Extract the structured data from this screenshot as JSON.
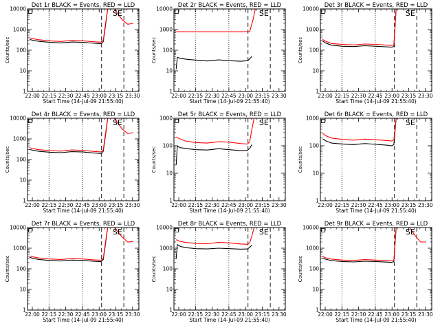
{
  "figure": {
    "rows": 3,
    "cols": 3
  },
  "chart_data": [
    {
      "type": "line",
      "title": "Det 1r BLACK = Events, RED = LLD",
      "xlabel": "Start Time (14-Jul-09 21:55:40)",
      "ylabel": "Counts/sec",
      "x_ticks": [
        "22:00",
        "22:15",
        "22:30",
        "22:45",
        "23:00",
        "23:15",
        "23:30"
      ],
      "y_ticks": [
        "1",
        "10",
        "100",
        "1000",
        "10000"
      ],
      "y_scale": "log",
      "ylim": [
        1,
        10000
      ],
      "xlim_minutes_after_start": [
        0,
        100
      ],
      "series": [
        {
          "name": "Events",
          "color": "#000000",
          "x": [
            2,
            5,
            10,
            20,
            30,
            40,
            50,
            60,
            66,
            68,
            70,
            72
          ],
          "y": [
            330,
            300,
            270,
            240,
            225,
            250,
            240,
            215,
            205,
            260,
            1500,
            10000
          ]
        },
        {
          "name": "LLD",
          "color": "#ff0000",
          "x": [
            2,
            5,
            10,
            20,
            30,
            40,
            50,
            60,
            66,
            68,
            70,
            72,
            78,
            85,
            90,
            95
          ],
          "y": [
            400,
            360,
            320,
            280,
            265,
            300,
            285,
            255,
            245,
            300,
            1800,
            10000,
            10000,
            3000,
            1800,
            2000
          ]
        }
      ],
      "vlines_dotted_min": [
        19.3,
        49.3
      ],
      "vlines_dashed_min": [
        66.5,
        86.5
      ],
      "annotations": [
        {
          "text": "SE",
          "x_min": 76.5
        }
      ]
    },
    {
      "type": "line",
      "title": "Det 2r BLACK = Events, RED = LLD",
      "xlabel": "Start Time (14-Jul-09 21:55:40)",
      "ylabel": "Counts/sec",
      "x_ticks": [
        "22:00",
        "22:15",
        "22:30",
        "22:45",
        "23:00",
        "23:15",
        "23:30"
      ],
      "y_ticks": [
        "1",
        "10",
        "100",
        "1000",
        "10000"
      ],
      "y_scale": "log",
      "ylim": [
        1,
        10000
      ],
      "xlim_minutes_after_start": [
        0,
        100
      ],
      "series": [
        {
          "name": "Events",
          "color": "#000000",
          "x": [
            2,
            3,
            6,
            12,
            20,
            30,
            40,
            50,
            60,
            66,
            68,
            70
          ],
          "y": [
            12,
            45,
            40,
            36,
            33,
            30,
            34,
            31,
            29,
            31,
            38,
            50
          ]
        },
        {
          "name": "LLD",
          "color": "#ff0000",
          "x": [
            2,
            20,
            40,
            60,
            68,
            71,
            73,
            75,
            77,
            80,
            83,
            86,
            89,
            92,
            95
          ],
          "y": [
            780,
            780,
            780,
            780,
            800,
            3000,
            10000,
            10000,
            10000,
            10000,
            10000,
            10000,
            10000,
            10000,
            10000
          ]
        }
      ],
      "vlines_dotted_min": [
        19.3,
        49.3
      ],
      "vlines_dashed_min": [
        66.5,
        86.5
      ],
      "annotations": [
        {
          "text": "SE",
          "x_min": 76.5
        }
      ]
    },
    {
      "type": "line",
      "title": "Det 3r BLACK = Events, RED = LLD",
      "xlabel": "Start Time (14-Jul-09 21:55:40)",
      "ylabel": "Counts/sec",
      "x_ticks": [
        "22:00",
        "22:15",
        "22:30",
        "22:45",
        "23:00",
        "23:15",
        "23:30"
      ],
      "y_ticks": [
        "1",
        "10",
        "100",
        "1000",
        "10000"
      ],
      "y_scale": "log",
      "ylim": [
        1,
        10000
      ],
      "xlim_minutes_after_start": [
        0,
        100
      ],
      "series": [
        {
          "name": "Events",
          "color": "#000000",
          "x": [
            2,
            5,
            10,
            20,
            30,
            40,
            50,
            60,
            64,
            66,
            68
          ],
          "y": [
            280,
            220,
            175,
            155,
            150,
            165,
            155,
            145,
            140,
            150,
            10000
          ]
        },
        {
          "name": "LLD",
          "color": "#ff0000",
          "x": [
            2,
            5,
            10,
            20,
            30,
            40,
            50,
            60,
            64,
            66,
            68
          ],
          "y": [
            330,
            270,
            210,
            190,
            180,
            200,
            190,
            175,
            170,
            180,
            10000
          ]
        }
      ],
      "vlines_dotted_min": [
        19.3,
        49.3
      ],
      "vlines_dashed_min": [
        66.5,
        86.5
      ],
      "annotations": [
        {
          "text": "SE",
          "x_min": 76.5
        }
      ]
    },
    {
      "type": "line",
      "title": "Det 4r BLACK = Events, RED = LLD",
      "xlabel": "Start Time (14-Jul-09 21:55:40)",
      "ylabel": "Counts/sec",
      "x_ticks": [
        "22:00",
        "22:15",
        "22:30",
        "22:45",
        "23:00",
        "23:15",
        "23:30"
      ],
      "y_ticks": [
        "1",
        "10",
        "100",
        "1000",
        "10000"
      ],
      "y_scale": "log",
      "ylim": [
        1,
        10000
      ],
      "xlim_minutes_after_start": [
        0,
        100
      ],
      "series": [
        {
          "name": "Events",
          "color": "#000000",
          "x": [
            2,
            5,
            10,
            20,
            30,
            40,
            50,
            60,
            66,
            68,
            70,
            72
          ],
          "y": [
            310,
            280,
            250,
            225,
            215,
            240,
            230,
            205,
            195,
            250,
            1400,
            10000
          ]
        },
        {
          "name": "LLD",
          "color": "#ff0000",
          "x": [
            2,
            5,
            10,
            20,
            30,
            40,
            50,
            60,
            66,
            68,
            70,
            72,
            78,
            85,
            90,
            95
          ],
          "y": [
            380,
            340,
            300,
            270,
            255,
            290,
            275,
            245,
            235,
            290,
            1700,
            10000,
            10000,
            3000,
            1800,
            2000
          ]
        }
      ],
      "vlines_dotted_min": [
        19.3,
        49.3
      ],
      "vlines_dashed_min": [
        66.5,
        86.5
      ],
      "annotations": [
        {
          "text": "SE",
          "x_min": 76.5
        }
      ]
    },
    {
      "type": "line",
      "title": "Det 5r BLACK = Events, RED = LLD",
      "xlabel": "Start Time (14-Jul-09 21:55:40)",
      "ylabel": "Counts/sec",
      "x_ticks": [
        "22:00",
        "22:15",
        "22:30",
        "22:45",
        "23:00",
        "23:15",
        "23:30"
      ],
      "y_ticks": [
        "1",
        "10",
        "100",
        "1000"
      ],
      "y_scale": "log",
      "ylim": [
        1,
        1000
      ],
      "xlim_minutes_after_start": [
        0,
        100
      ],
      "series": [
        {
          "name": "Events",
          "color": "#000000",
          "x": [
            2,
            3,
            6,
            12,
            20,
            30,
            40,
            50,
            60,
            66,
            68,
            70
          ],
          "y": [
            20,
            95,
            85,
            78,
            72,
            70,
            78,
            72,
            66,
            68,
            80,
            110
          ]
        },
        {
          "name": "LLD",
          "color": "#ff0000",
          "x": [
            2,
            5,
            10,
            20,
            30,
            40,
            50,
            60,
            66,
            68,
            70,
            72,
            80,
            90,
            95
          ],
          "y": [
            210,
            180,
            150,
            130,
            125,
            140,
            135,
            120,
            115,
            140,
            400,
            1000,
            1000,
            1000,
            1000
          ]
        }
      ],
      "vlines_dotted_min": [
        19.3,
        49.3
      ],
      "vlines_dashed_min": [
        66.5,
        86.5
      ],
      "annotations": [
        {
          "text": "SE",
          "x_min": 76.5
        }
      ]
    },
    {
      "type": "line",
      "title": "Det 6r BLACK = Events, RED = LLD",
      "xlabel": "Start Time (14-Jul-09 21:55:40)",
      "ylabel": "Counts/sec",
      "x_ticks": [
        "22:00",
        "22:15",
        "22:30",
        "22:45",
        "23:00",
        "23:15",
        "23:30"
      ],
      "y_ticks": [
        "1",
        "10",
        "100",
        "1000"
      ],
      "y_scale": "log",
      "ylim": [
        1,
        1000
      ],
      "xlim_minutes_after_start": [
        0,
        100
      ],
      "series": [
        {
          "name": "Events",
          "color": "#000000",
          "x": [
            2,
            5,
            10,
            20,
            30,
            40,
            50,
            60,
            64,
            66,
            68
          ],
          "y": [
            180,
            150,
            125,
            115,
            110,
            120,
            112,
            105,
            100,
            110,
            1000
          ]
        },
        {
          "name": "LLD",
          "color": "#ff0000",
          "x": [
            2,
            5,
            10,
            20,
            30,
            40,
            50,
            60,
            64,
            66,
            68
          ],
          "y": [
            280,
            230,
            190,
            170,
            160,
            175,
            165,
            155,
            150,
            165,
            1000
          ]
        }
      ],
      "vlines_dotted_min": [
        19.3,
        49.3
      ],
      "vlines_dashed_min": [
        66.5,
        86.5
      ],
      "annotations": [
        {
          "text": "SE",
          "x_min": 76.5
        }
      ]
    },
    {
      "type": "line",
      "title": "Det 7r BLACK = Events, RED = LLD",
      "xlabel": "Start Time (14-Jul-09 21:55:40)",
      "ylabel": "Counts/sec",
      "x_ticks": [
        "22:00",
        "22:15",
        "22:30",
        "22:45",
        "23:00",
        "23:15",
        "23:30"
      ],
      "y_ticks": [
        "1",
        "10",
        "100",
        "1000",
        "10000"
      ],
      "y_scale": "log",
      "ylim": [
        1,
        10000
      ],
      "xlim_minutes_after_start": [
        0,
        100
      ],
      "series": [
        {
          "name": "Events",
          "color": "#000000",
          "x": [
            2,
            5,
            10,
            20,
            30,
            40,
            50,
            60,
            66,
            68,
            70,
            72
          ],
          "y": [
            360,
            320,
            285,
            255,
            240,
            265,
            255,
            230,
            220,
            280,
            1600,
            10000
          ]
        },
        {
          "name": "LLD",
          "color": "#ff0000",
          "x": [
            2,
            5,
            10,
            20,
            30,
            40,
            50,
            60,
            66,
            68,
            70,
            72,
            78,
            85,
            90,
            95
          ],
          "y": [
            420,
            380,
            335,
            300,
            285,
            315,
            300,
            270,
            260,
            320,
            1900,
            10000,
            10000,
            3500,
            2000,
            2100
          ]
        }
      ],
      "vlines_dotted_min": [
        19.3,
        49.3
      ],
      "vlines_dashed_min": [
        66.5,
        86.5
      ],
      "annotations": [
        {
          "text": "SE",
          "x_min": 76.5
        }
      ]
    },
    {
      "type": "line",
      "title": "Det 8r BLACK = Events, RED = LLD",
      "xlabel": "Start Time (14-Jul-09 21:55:40)",
      "ylabel": "Counts/sec",
      "x_ticks": [
        "22:00",
        "22:15",
        "22:30",
        "22:45",
        "23:00",
        "23:15",
        "23:30"
      ],
      "y_ticks": [
        "1",
        "10",
        "100",
        "1000",
        "10000"
      ],
      "y_scale": "log",
      "ylim": [
        1,
        10000
      ],
      "xlim_minutes_after_start": [
        0,
        100
      ],
      "series": [
        {
          "name": "Events",
          "color": "#000000",
          "x": [
            2,
            3,
            6,
            12,
            20,
            30,
            40,
            50,
            60,
            66,
            68,
            70
          ],
          "y": [
            300,
            1500,
            1200,
            1050,
            950,
            920,
            1000,
            950,
            900,
            920,
            1100,
            1400
          ]
        },
        {
          "name": "LLD",
          "color": "#ff0000",
          "x": [
            2,
            5,
            10,
            20,
            30,
            40,
            50,
            60,
            66,
            68,
            70,
            72,
            80,
            90,
            95
          ],
          "y": [
            2600,
            2200,
            1900,
            1700,
            1650,
            1900,
            1800,
            1600,
            1550,
            1800,
            4000,
            10000,
            10000,
            10000,
            10000
          ]
        }
      ],
      "vlines_dotted_min": [
        19.3,
        49.3
      ],
      "vlines_dashed_min": [
        66.5,
        86.5
      ],
      "annotations": [
        {
          "text": "SE",
          "x_min": 76.5
        }
      ]
    },
    {
      "type": "line",
      "title": "Det 9r BLACK = Events, RED = LLD",
      "xlabel": "Start Time (14-Jul-09 21:55:40)",
      "ylabel": "Counts/sec",
      "x_ticks": [
        "22:00",
        "22:15",
        "22:30",
        "22:45",
        "23:00",
        "23:15",
        "23:30"
      ],
      "y_ticks": [
        "1",
        "10",
        "100",
        "1000",
        "10000"
      ],
      "y_scale": "log",
      "ylim": [
        1,
        10000
      ],
      "xlim_minutes_after_start": [
        0,
        100
      ],
      "series": [
        {
          "name": "Events",
          "color": "#000000",
          "x": [
            2,
            5,
            10,
            20,
            30,
            40,
            50,
            60,
            64,
            66,
            68
          ],
          "y": [
            340,
            290,
            250,
            225,
            215,
            235,
            225,
            210,
            205,
            220,
            10000
          ]
        },
        {
          "name": "LLD",
          "color": "#ff0000",
          "x": [
            2,
            5,
            10,
            20,
            30,
            40,
            50,
            60,
            64,
            66,
            68,
            80,
            86,
            90,
            95
          ],
          "y": [
            400,
            340,
            295,
            265,
            255,
            280,
            265,
            250,
            245,
            260,
            10000,
            10000,
            3500,
            2000,
            2000
          ]
        }
      ],
      "vlines_dotted_min": [
        19.3,
        49.3
      ],
      "vlines_dashed_min": [
        66.5,
        86.5
      ],
      "annotations": [
        {
          "text": "SE",
          "x_min": 76.5
        }
      ]
    }
  ]
}
